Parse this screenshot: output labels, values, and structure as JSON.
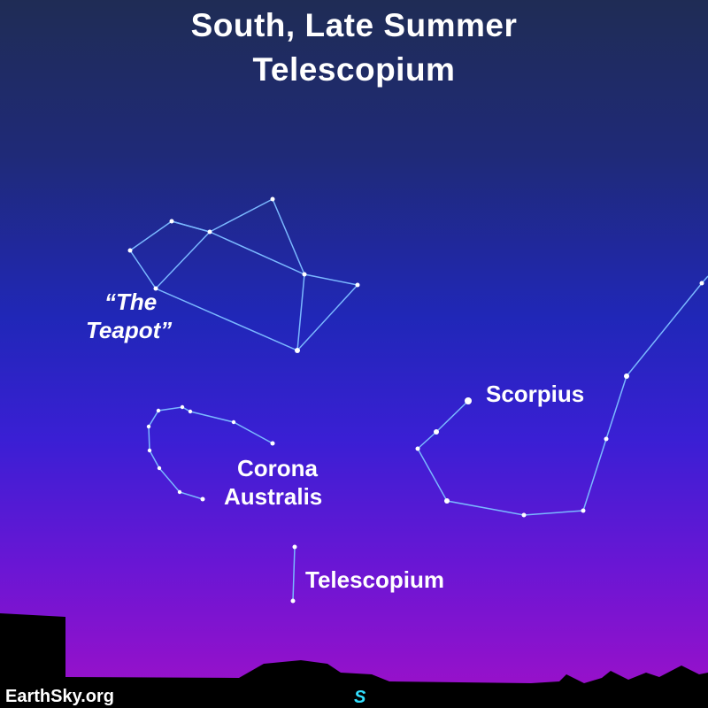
{
  "title": {
    "line1": "South, Late Summer",
    "line2": "Telescopium"
  },
  "labels": {
    "teapot_line1": "“The",
    "teapot_line2": "Teapot”",
    "corona_line1": "Corona",
    "corona_line2": "Australis",
    "scorpius": "Scorpius",
    "telescopium": "Telescopium"
  },
  "footer": {
    "credit": "EarthSky.org",
    "direction": "S"
  },
  "colors": {
    "line": "#7ab8ff",
    "star": "#ffffff",
    "direction": "#33e0ff",
    "horizon": "#000000"
  }
}
